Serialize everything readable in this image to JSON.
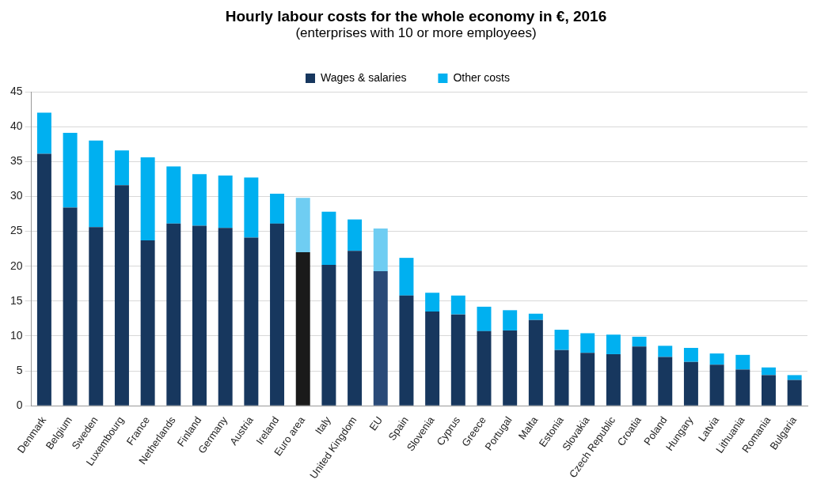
{
  "chart_data": {
    "type": "bar",
    "title": "Hourly labour costs for the whole economy in €, 2016",
    "subtitle": "(enterprises with 10 or more employees)",
    "categories": [
      "Denmark",
      "Belgium",
      "Sweden",
      "Luxembourg",
      "France",
      "Netherlands",
      "Finland",
      "Germany",
      "Austria",
      "Ireland",
      "Euro area",
      "Italy",
      "United Kingdom",
      "EU",
      "Spain",
      "Slovenia",
      "Cyprus",
      "Greece",
      "Portugal",
      "Malta",
      "Estonia",
      "Slovakia",
      "Czech Republic",
      "Croatia",
      "Poland",
      "Hungary",
      "Latvia",
      "Lithuania",
      "Romania",
      "Bulgaria"
    ],
    "stacked": true,
    "ylim": [
      0,
      45
    ],
    "yticks": [
      0,
      5,
      10,
      15,
      20,
      25,
      30,
      35,
      40,
      45
    ],
    "grid": "y",
    "legend": "top",
    "series": [
      {
        "name": "Wages & salaries",
        "color": "#17375e",
        "colors": [
          "#17375e",
          "#17375e",
          "#17375e",
          "#17375e",
          "#17375e",
          "#17375e",
          "#17375e",
          "#17375e",
          "#17375e",
          "#17375e",
          "#1a1a1a",
          "#17375e",
          "#17375e",
          "#2a4a78",
          "#17375e",
          "#17375e",
          "#17375e",
          "#17375e",
          "#17375e",
          "#17375e",
          "#17375e",
          "#17375e",
          "#17375e",
          "#17375e",
          "#17375e",
          "#17375e",
          "#17375e",
          "#17375e",
          "#17375e",
          "#17375e"
        ],
        "values": [
          36.1,
          28.4,
          25.6,
          31.6,
          23.7,
          26.1,
          25.8,
          25.5,
          24.1,
          26.1,
          22.0,
          20.2,
          22.2,
          19.3,
          15.8,
          13.5,
          13.1,
          10.7,
          10.8,
          12.3,
          8.0,
          7.6,
          7.4,
          8.5,
          7.0,
          6.3,
          5.9,
          5.2,
          4.4,
          3.7
        ]
      },
      {
        "name": "Other costs",
        "color": "#00b0f0",
        "colors": [
          "#00b0f0",
          "#00b0f0",
          "#00b0f0",
          "#00b0f0",
          "#00b0f0",
          "#00b0f0",
          "#00b0f0",
          "#00b0f0",
          "#00b0f0",
          "#00b0f0",
          "#6fcdf2",
          "#00b0f0",
          "#00b0f0",
          "#6fcdf2",
          "#00b0f0",
          "#00b0f0",
          "#00b0f0",
          "#00b0f0",
          "#00b0f0",
          "#00b0f0",
          "#00b0f0",
          "#00b0f0",
          "#00b0f0",
          "#00b0f0",
          "#00b0f0",
          "#00b0f0",
          "#00b0f0",
          "#00b0f0",
          "#00b0f0",
          "#00b0f0"
        ],
        "values": [
          5.9,
          10.7,
          12.4,
          5.0,
          11.9,
          8.2,
          7.4,
          7.5,
          8.6,
          4.3,
          7.8,
          7.6,
          4.5,
          6.1,
          5.4,
          2.7,
          2.7,
          3.5,
          2.9,
          0.9,
          2.9,
          2.8,
          2.8,
          1.4,
          1.6,
          2.0,
          1.6,
          2.1,
          1.1,
          0.7
        ]
      }
    ]
  }
}
